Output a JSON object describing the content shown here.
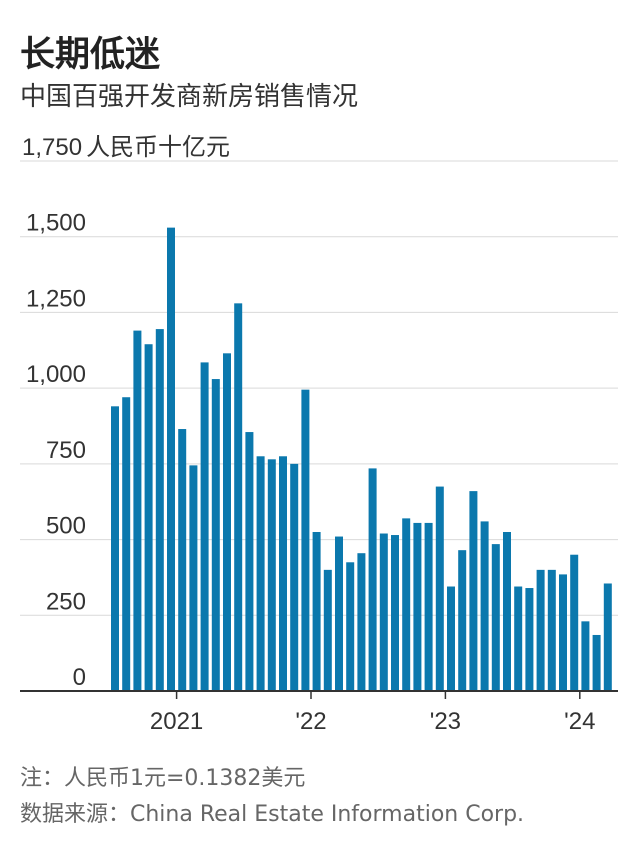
{
  "title": "长期低迷",
  "subtitle": "中国百强开发商新房销售情况",
  "note": "注：人民币1元=0.1382美元",
  "source": "数据来源：China Real Estate Information Corp.",
  "colors": {
    "bar": "#0b78ad",
    "grid": "#d9d9d9",
    "axis": "#333333"
  },
  "chart_data": {
    "type": "bar",
    "ylabel_unit": "人民币十亿元",
    "ylim": [
      0,
      1750
    ],
    "yticks": [
      0,
      250,
      500,
      750,
      1000,
      1250,
      1500,
      1750
    ],
    "ytick_labels": [
      "0",
      "250",
      "500",
      "750",
      "1,000",
      "1,250",
      "1,500",
      "1,750"
    ],
    "xticks": [
      {
        "label": "2021",
        "index": 5.5
      },
      {
        "label": "'22",
        "index": 17.5
      },
      {
        "label": "'23",
        "index": 29.5
      },
      {
        "label": "'24",
        "index": 41.5
      }
    ],
    "categories": [
      "2020-07",
      "2020-08",
      "2020-09",
      "2020-10",
      "2020-11",
      "2020-12",
      "2021-01",
      "2021-02",
      "2021-03",
      "2021-04",
      "2021-05",
      "2021-06",
      "2021-07",
      "2021-08",
      "2021-09",
      "2021-10",
      "2021-11",
      "2021-12",
      "2022-01",
      "2022-02",
      "2022-03",
      "2022-04",
      "2022-05",
      "2022-06",
      "2022-07",
      "2022-08",
      "2022-09",
      "2022-10",
      "2022-11",
      "2022-12",
      "2023-01",
      "2023-02",
      "2023-03",
      "2023-04",
      "2023-05",
      "2023-06",
      "2023-07",
      "2023-08",
      "2023-09",
      "2023-10",
      "2023-11",
      "2023-12",
      "2024-01",
      "2024-02",
      "2024-03"
    ],
    "values": [
      940,
      970,
      1190,
      1145,
      1195,
      1530,
      865,
      745,
      1085,
      1030,
      1115,
      1280,
      855,
      775,
      765,
      775,
      750,
      995,
      525,
      400,
      510,
      425,
      455,
      735,
      520,
      515,
      570,
      555,
      555,
      675,
      345,
      465,
      660,
      560,
      485,
      525,
      345,
      340,
      400,
      400,
      385,
      450,
      230,
      185,
      355
    ]
  }
}
